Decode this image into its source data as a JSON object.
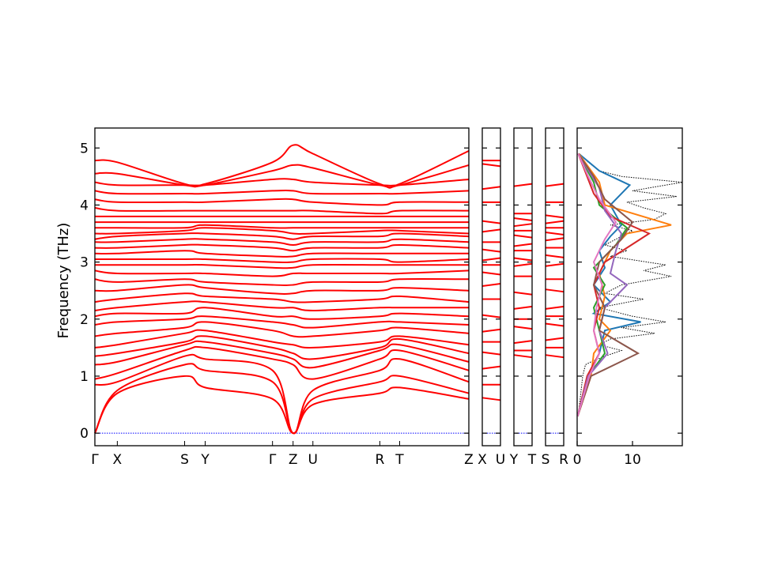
{
  "chart_data": {
    "type": "line",
    "title": "",
    "ylabel": "Frequency (THz)",
    "ylim": [
      -0.22,
      5.35
    ],
    "yticks": [
      0,
      1,
      2,
      3,
      4,
      5
    ],
    "colors": {
      "bands": "#ff0000",
      "zero_line": "#0000ff",
      "total_dos": "#000000",
      "pdos": [
        "#1f77b4",
        "#ff7f0e",
        "#2ca02c",
        "#d62728",
        "#9467bd",
        "#8c564b",
        "#e377c2"
      ]
    },
    "main_path": {
      "labels": [
        "Γ",
        "X",
        "S",
        "Y",
        "Γ",
        "Z",
        "U",
        "R",
        "T",
        "Z"
      ],
      "positions": [
        0,
        0.06,
        0.24,
        0.295,
        0.475,
        0.53,
        0.583,
        0.762,
        0.815,
        1.0
      ]
    },
    "short_segments": [
      {
        "labels": [
          "X",
          "U"
        ]
      },
      {
        "labels": [
          "Y",
          "T"
        ]
      },
      {
        "labels": [
          "S",
          "R"
        ]
      }
    ],
    "bands_main": [
      [
        0,
        0.7,
        1.0,
        0.8,
        0.6,
        0.0,
        0.5,
        0.7,
        0.8,
        0.6
      ],
      [
        0,
        0.75,
        1.2,
        1.1,
        0.9,
        0.0,
        0.6,
        0.9,
        1.0,
        0.7
      ],
      [
        0.85,
        0.9,
        1.35,
        1.3,
        1.1,
        0.0,
        0.75,
        1.1,
        1.3,
        0.9
      ],
      [
        0.95,
        1.05,
        1.45,
        1.5,
        1.3,
        1.2,
        0.95,
        1.3,
        1.45,
        1.1
      ],
      [
        1.2,
        1.25,
        1.55,
        1.6,
        1.4,
        1.3,
        1.15,
        1.45,
        1.55,
        1.25
      ],
      [
        1.35,
        1.4,
        1.6,
        1.7,
        1.5,
        1.4,
        1.3,
        1.5,
        1.65,
        1.4
      ],
      [
        1.5,
        1.55,
        1.75,
        1.8,
        1.6,
        1.55,
        1.5,
        1.6,
        1.7,
        1.55
      ],
      [
        1.7,
        1.75,
        1.85,
        1.95,
        1.8,
        1.7,
        1.7,
        1.8,
        1.85,
        1.75
      ],
      [
        1.9,
        1.95,
        2.0,
        2.05,
        1.95,
        1.9,
        1.85,
        1.95,
        1.95,
        1.9
      ],
      [
        2.05,
        2.1,
        2.1,
        2.2,
        2.05,
        2.05,
        2.0,
        2.05,
        2.1,
        2.05
      ],
      [
        2.15,
        2.2,
        2.3,
        2.3,
        2.2,
        2.2,
        2.15,
        2.2,
        2.2,
        2.2
      ],
      [
        2.3,
        2.35,
        2.45,
        2.4,
        2.35,
        2.3,
        2.3,
        2.35,
        2.4,
        2.3
      ],
      [
        2.5,
        2.5,
        2.6,
        2.55,
        2.45,
        2.45,
        2.5,
        2.5,
        2.55,
        2.5
      ],
      [
        2.7,
        2.65,
        2.7,
        2.65,
        2.6,
        2.6,
        2.65,
        2.65,
        2.7,
        2.7
      ],
      [
        2.85,
        2.8,
        2.8,
        2.8,
        2.75,
        2.8,
        2.8,
        2.8,
        2.8,
        2.85
      ],
      [
        2.95,
        2.95,
        2.95,
        2.95,
        2.9,
        2.9,
        2.95,
        2.95,
        2.95,
        2.95
      ],
      [
        3.05,
        3.05,
        3.05,
        3.05,
        3.0,
        3.0,
        3.05,
        3.05,
        3.0,
        3.05
      ],
      [
        3.15,
        3.15,
        3.2,
        3.15,
        3.1,
        3.1,
        3.15,
        3.15,
        3.15,
        3.15
      ],
      [
        3.25,
        3.25,
        3.3,
        3.3,
        3.25,
        3.2,
        3.25,
        3.25,
        3.3,
        3.25
      ],
      [
        3.35,
        3.35,
        3.4,
        3.4,
        3.35,
        3.3,
        3.35,
        3.35,
        3.4,
        3.35
      ],
      [
        3.4,
        3.45,
        3.5,
        3.5,
        3.45,
        3.4,
        3.45,
        3.45,
        3.5,
        3.45
      ],
      [
        3.5,
        3.5,
        3.55,
        3.6,
        3.55,
        3.5,
        3.5,
        3.55,
        3.55,
        3.5
      ],
      [
        3.6,
        3.6,
        3.6,
        3.65,
        3.6,
        3.6,
        3.6,
        3.6,
        3.6,
        3.6
      ],
      [
        3.7,
        3.7,
        3.7,
        3.7,
        3.7,
        3.7,
        3.7,
        3.7,
        3.7,
        3.7
      ],
      [
        3.8,
        3.8,
        3.8,
        3.8,
        3.8,
        3.8,
        3.8,
        3.8,
        3.8,
        3.8
      ],
      [
        3.95,
        3.9,
        3.9,
        3.9,
        3.9,
        3.9,
        3.9,
        3.85,
        3.9,
        3.9
      ],
      [
        4.1,
        4.05,
        4.05,
        4.05,
        4.1,
        4.1,
        4.05,
        4.0,
        4.05,
        4.05
      ],
      [
        4.25,
        4.2,
        4.2,
        4.2,
        4.25,
        4.25,
        4.2,
        4.2,
        4.2,
        4.25
      ],
      [
        4.4,
        4.35,
        4.35,
        4.35,
        4.45,
        4.45,
        4.4,
        4.35,
        4.35,
        4.45
      ],
      [
        4.55,
        4.55,
        4.35,
        4.35,
        4.6,
        4.7,
        4.65,
        4.35,
        4.35,
        4.7
      ],
      [
        4.78,
        4.75,
        4.37,
        4.37,
        4.75,
        5.05,
        4.9,
        4.37,
        4.37,
        4.95
      ]
    ],
    "short_segment_levels": [
      [
        0.6,
        0.85,
        1.15,
        1.4,
        1.6,
        1.8,
        2.05,
        2.35,
        2.6,
        2.8,
        2.95,
        3.05,
        3.2,
        3.35,
        3.55,
        3.7,
        4.05,
        4.3,
        4.7,
        4.78
      ],
      [
        1.35,
        1.45,
        1.6,
        1.85,
        2.0,
        2.2,
        2.45,
        2.75,
        2.95,
        3.05,
        3.2,
        3.3,
        3.45,
        3.55,
        3.65,
        3.75,
        3.85,
        4.35
      ],
      [
        1.35,
        1.5,
        1.65,
        1.9,
        2.05,
        2.2,
        2.5,
        2.7,
        2.95,
        3.1,
        3.25,
        3.4,
        3.5,
        3.6,
        3.7,
        3.8,
        4.05,
        4.35
      ]
    ],
    "dos": {
      "xlim": [
        0,
        19
      ],
      "xticks": [
        0,
        10
      ],
      "total": [
        [
          0.3,
          0.2
        ],
        [
          1.0,
          1.0
        ],
        [
          1.2,
          1.5
        ],
        [
          1.25,
          2.5
        ],
        [
          1.35,
          5
        ],
        [
          1.45,
          8
        ],
        [
          1.55,
          4
        ],
        [
          1.65,
          6
        ],
        [
          1.75,
          14
        ],
        [
          1.85,
          8
        ],
        [
          1.95,
          16
        ],
        [
          2.05,
          10
        ],
        [
          2.2,
          4
        ],
        [
          2.35,
          12
        ],
        [
          2.45,
          5
        ],
        [
          2.6,
          8
        ],
        [
          2.75,
          17
        ],
        [
          2.85,
          12
        ],
        [
          2.95,
          16
        ],
        [
          3.1,
          6
        ],
        [
          3.2,
          9
        ],
        [
          3.3,
          5
        ],
        [
          3.45,
          8
        ],
        [
          3.55,
          10
        ],
        [
          3.65,
          6
        ],
        [
          3.75,
          14
        ],
        [
          3.85,
          16
        ],
        [
          3.95,
          12
        ],
        [
          4.05,
          9
        ],
        [
          4.15,
          18
        ],
        [
          4.25,
          10
        ],
        [
          4.4,
          19
        ],
        [
          4.5,
          8
        ],
        [
          4.6,
          4
        ],
        [
          4.75,
          2
        ],
        [
          4.9,
          0.4
        ]
      ],
      "partials": [
        [
          [
            0.3,
            0.1
          ],
          [
            1.0,
            2
          ],
          [
            1.4,
            4
          ],
          [
            1.8,
            5
          ],
          [
            1.95,
            11.5
          ],
          [
            2.1,
            3
          ],
          [
            2.3,
            6
          ],
          [
            2.6,
            3
          ],
          [
            2.9,
            5
          ],
          [
            3.2,
            4
          ],
          [
            3.45,
            6
          ],
          [
            3.65,
            8
          ],
          [
            4.0,
            6
          ],
          [
            4.35,
            9.5
          ],
          [
            4.6,
            4
          ],
          [
            4.9,
            0.3
          ]
        ],
        [
          [
            0.3,
            0.1
          ],
          [
            1.0,
            2.5
          ],
          [
            1.4,
            3
          ],
          [
            1.8,
            6
          ],
          [
            2.0,
            4
          ],
          [
            2.4,
            5
          ],
          [
            2.8,
            4
          ],
          [
            3.2,
            6
          ],
          [
            3.5,
            9
          ],
          [
            3.65,
            17
          ],
          [
            4.0,
            5
          ],
          [
            4.4,
            4
          ],
          [
            4.9,
            0.3
          ]
        ],
        [
          [
            0.3,
            0.1
          ],
          [
            1.0,
            2
          ],
          [
            1.4,
            5
          ],
          [
            1.8,
            4
          ],
          [
            2.2,
            3
          ],
          [
            2.6,
            5
          ],
          [
            2.9,
            3
          ],
          [
            3.3,
            7
          ],
          [
            3.6,
            9
          ],
          [
            4.0,
            4
          ],
          [
            4.4,
            3
          ],
          [
            4.9,
            0.2
          ]
        ],
        [
          [
            0.3,
            0.1
          ],
          [
            1.0,
            1.8
          ],
          [
            1.4,
            4
          ],
          [
            1.8,
            3
          ],
          [
            2.2,
            4
          ],
          [
            2.6,
            3
          ],
          [
            3.0,
            5
          ],
          [
            3.5,
            13
          ],
          [
            3.8,
            6
          ],
          [
            4.2,
            3
          ],
          [
            4.9,
            0.2
          ]
        ],
        [
          [
            0.3,
            0.1
          ],
          [
            1.0,
            2
          ],
          [
            1.4,
            5.5
          ],
          [
            1.8,
            4
          ],
          [
            2.2,
            5
          ],
          [
            2.6,
            9
          ],
          [
            2.8,
            6
          ],
          [
            3.2,
            7
          ],
          [
            3.5,
            8
          ],
          [
            3.9,
            5
          ],
          [
            4.3,
            4
          ],
          [
            4.9,
            0.2
          ]
        ],
        [
          [
            0.3,
            0.1
          ],
          [
            1.0,
            2.5
          ],
          [
            1.4,
            11
          ],
          [
            1.8,
            4
          ],
          [
            2.2,
            5
          ],
          [
            2.6,
            3
          ],
          [
            3.0,
            4
          ],
          [
            3.4,
            8
          ],
          [
            3.7,
            10
          ],
          [
            4.1,
            5
          ],
          [
            4.5,
            3
          ],
          [
            4.9,
            0.2
          ]
        ],
        [
          [
            0.3,
            0.1
          ],
          [
            1.0,
            2.2
          ],
          [
            1.4,
            4
          ],
          [
            1.8,
            3
          ],
          [
            2.2,
            3.5
          ],
          [
            2.6,
            4.5
          ],
          [
            3.0,
            3
          ],
          [
            3.4,
            5
          ],
          [
            3.7,
            7
          ],
          [
            4.1,
            4
          ],
          [
            4.5,
            2
          ],
          [
            4.9,
            0.2
          ]
        ]
      ]
    }
  }
}
